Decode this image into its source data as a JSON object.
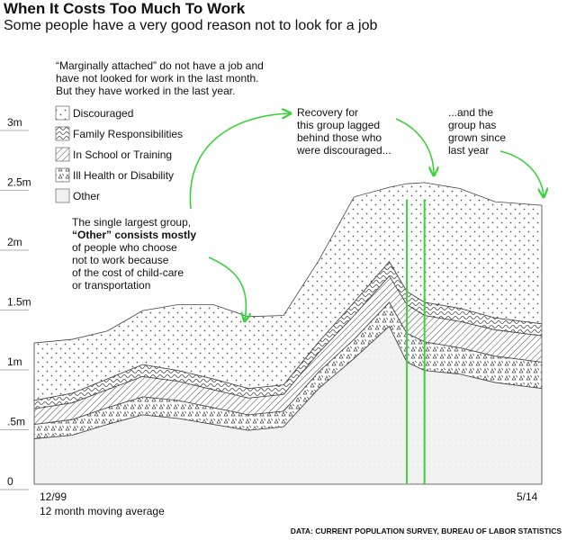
{
  "header": {
    "title": "When It Costs Too Much To Work",
    "subtitle": "Some people have a very good reason not to look for a job"
  },
  "source": "DATA: CURRENT POPULATION SURVEY, BUREAU OF LABOR STATISTICS",
  "intro_note": [
    "“Marginally attached” do not have a job and",
    "have not looked for work in the last month.",
    "But they have worked in the last year."
  ],
  "annotations": {
    "other": [
      "The single largest group,",
      "“Other” consists mostly",
      "of people who choose",
      "not to work because",
      "of the cost of child-care",
      "or transportation"
    ],
    "recovery": [
      "Recovery for",
      "this group lagged",
      "behind those who",
      "were discouraged..."
    ],
    "grown": [
      "...and the",
      "group has",
      "grown since",
      "last year"
    ]
  },
  "colors": {
    "accent": "#39d339",
    "ink": "#333333",
    "fill": "#ffffff"
  },
  "chart_data": {
    "type": "area",
    "stacked": true,
    "title": "When It Costs Too Much To Work",
    "subtitle": "Some people have a very good reason not to look for a job",
    "x_start_label": "12/99",
    "x_end_label": "5/14",
    "x_note": "12 month moving average",
    "y_ticks": [
      {
        "value": 0,
        "label": "0"
      },
      {
        "value": 0.5,
        "label": ".5m"
      },
      {
        "value": 1,
        "label": "1m"
      },
      {
        "value": 1.5,
        "label": "1.5m"
      },
      {
        "value": 2,
        "label": "2m"
      },
      {
        "value": 2.5,
        "label": "2.5m"
      },
      {
        "value": 3,
        "label": "3m"
      }
    ],
    "ylim": [
      0,
      3
    ],
    "x": [
      1999.92,
      2001,
      2002,
      2003,
      2004,
      2005,
      2006,
      2007,
      2008,
      2009,
      2010,
      2010.5,
      2011,
      2012,
      2013,
      2014.33
    ],
    "series": [
      {
        "name": "Other",
        "pattern": "plain",
        "values": [
          0.38,
          0.41,
          0.5,
          0.58,
          0.55,
          0.5,
          0.45,
          0.48,
          0.8,
          1.05,
          1.32,
          1.02,
          0.95,
          0.92,
          0.85,
          0.8
        ]
      },
      {
        "name": "Ill Health or Disability",
        "pattern": "triangles",
        "values": [
          0.12,
          0.13,
          0.14,
          0.15,
          0.15,
          0.14,
          0.13,
          0.13,
          0.14,
          0.16,
          0.2,
          0.24,
          0.24,
          0.22,
          0.22,
          0.22
        ]
      },
      {
        "name": "In School or Training",
        "pattern": "diagonal",
        "values": [
          0.13,
          0.14,
          0.15,
          0.17,
          0.16,
          0.15,
          0.14,
          0.14,
          0.16,
          0.2,
          0.22,
          0.24,
          0.22,
          0.22,
          0.22,
          0.22
        ]
      },
      {
        "name": "Family Responsibilities",
        "pattern": "wavy",
        "values": [
          0.07,
          0.08,
          0.09,
          0.1,
          0.09,
          0.09,
          0.08,
          0.08,
          0.09,
          0.11,
          0.12,
          0.11,
          0.11,
          0.11,
          0.1,
          0.1
        ]
      },
      {
        "name": "Discouraged",
        "pattern": "dots",
        "values": [
          0.48,
          0.45,
          0.4,
          0.45,
          0.55,
          0.62,
          0.6,
          0.58,
          0.68,
          0.88,
          0.62,
          0.9,
          1.0,
          1.0,
          0.97,
          0.99
        ]
      }
    ],
    "legend_order": [
      "Discouraged",
      "Family Responsibilities",
      "In School or Training",
      "Ill Health or Disability",
      "Other"
    ],
    "legend_position": "top-left",
    "grid": false,
    "highlight_x": [
      2010.5,
      2011
    ]
  }
}
